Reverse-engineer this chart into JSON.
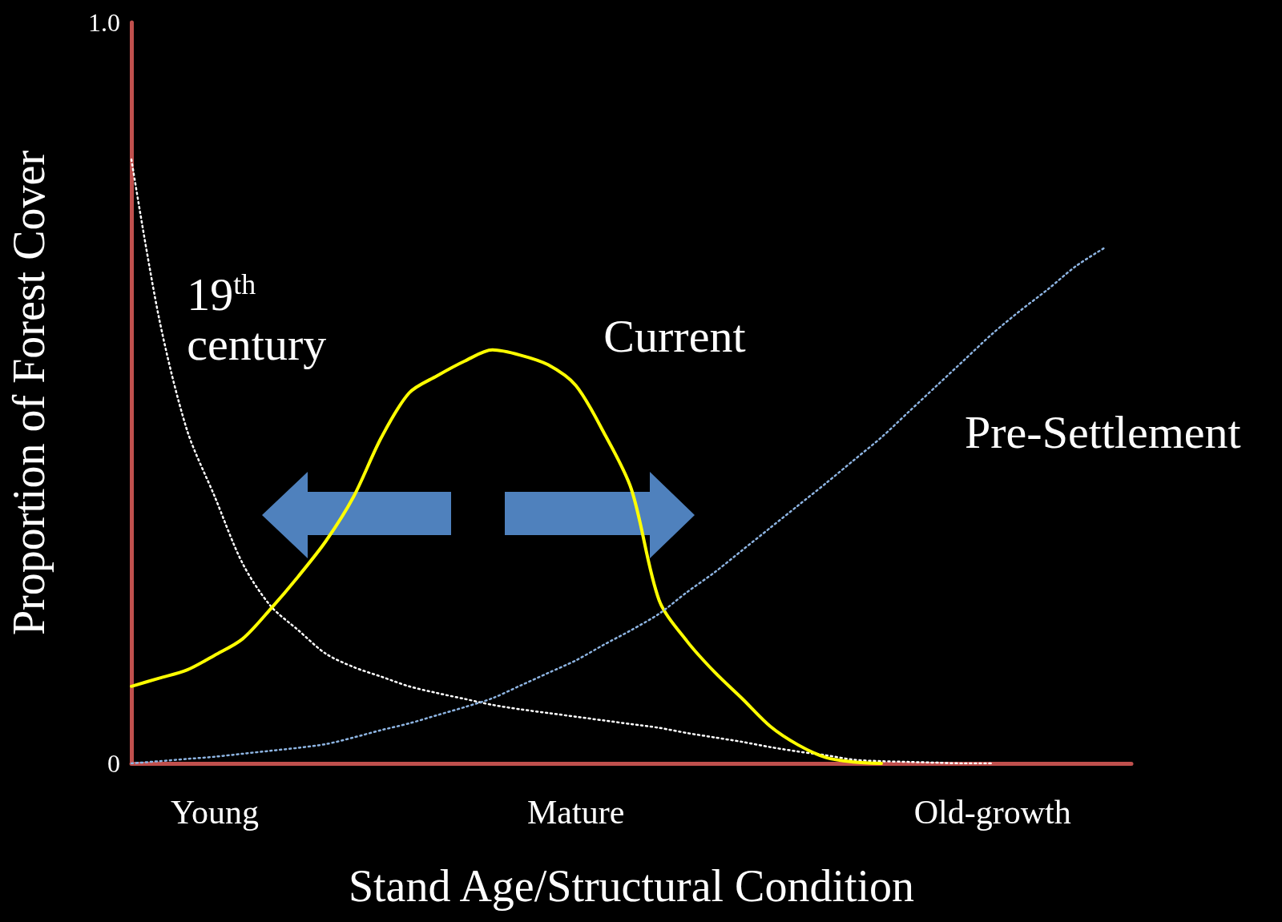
{
  "chart_data": {
    "type": "line",
    "xlabel": "Stand Age/Structural Condition",
    "ylabel": "Proportion of Forest Cover",
    "categories": [
      null,
      null,
      null,
      "Young",
      null,
      null,
      null,
      null,
      null,
      null,
      null,
      null,
      null,
      null,
      null,
      null,
      "Mature",
      null,
      null,
      null,
      null,
      null,
      null,
      null,
      null,
      null,
      null,
      null,
      null,
      null,
      null,
      "Old-growth",
      null,
      null,
      null,
      null,
      null
    ],
    "ylim": [
      0,
      1
    ],
    "yticks": [
      0,
      {
        "value": 1,
        "label": "1.0"
      }
    ],
    "marker": "none",
    "series": [
      {
        "name": "19$^{th}$ century",
        "color": "#ffffff",
        "line_style": "dotted",
        "values": [
          0.815,
          0.6,
          0.45,
          0.36,
          0.27,
          0.213,
          0.18,
          0.148,
          0.13,
          0.117,
          0.104,
          0.095,
          0.087,
          0.079,
          0.073,
          0.068,
          0.063,
          0.058,
          0.053,
          0.048,
          0.041,
          0.035,
          0.029,
          0.022,
          0.016,
          0.011,
          0.005,
          0.003,
          0.002,
          0.001,
          0,
          0,
          null,
          null,
          null,
          null,
          null
        ]
      },
      {
        "name": "Current",
        "color": "#ffff00",
        "line_style": "solid",
        "values": [
          0.104,
          0.115,
          0.126,
          0.146,
          0.168,
          0.208,
          0.252,
          0.3,
          0.36,
          0.44,
          0.5,
          0.523,
          0.543,
          0.558,
          0.551,
          0.538,
          0.51,
          0.447,
          0.37,
          0.22,
          0.165,
          0.123,
          0.087,
          0.05,
          0.025,
          0.008,
          0.002,
          0,
          null,
          null,
          null,
          null,
          null,
          null,
          null,
          null,
          null
        ]
      },
      {
        "name": "Pre-Settlement",
        "color": "#8db4e2",
        "line_style": "dotted",
        "values": [
          0,
          0.003,
          0.006,
          0.009,
          0.013,
          0.017,
          0.021,
          0.026,
          0.035,
          0.045,
          0.054,
          0.065,
          0.076,
          0.088,
          0.105,
          0.122,
          0.139,
          0.16,
          0.18,
          0.202,
          0.231,
          0.258,
          0.288,
          0.318,
          0.348,
          0.378,
          0.409,
          0.44,
          0.475,
          0.51,
          0.545,
          0.58,
          0.611,
          0.64,
          0.671,
          0.695,
          null
        ]
      }
    ]
  }
}
